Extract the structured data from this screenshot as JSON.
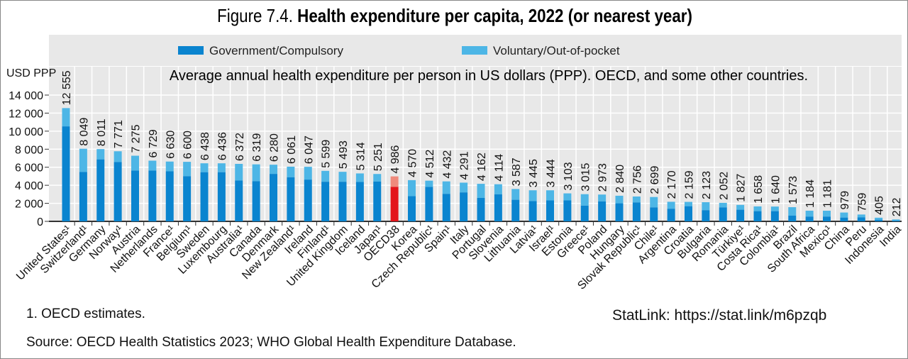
{
  "title_prefix": "Figure 7.4.",
  "title_main": "Health expenditure per capita, 2022 (or nearest year)",
  "footnote": "1. OECD estimates.",
  "statlink": "StatLink: https://stat.link/m6pzqb",
  "source": "Source: OECD Health Statistics 2023; WHO Global Health Expenditure Database.",
  "colors": {
    "government": "#0a84cf",
    "voluntary": "#4db6e6",
    "oecd_government": "#e3151b",
    "oecd_voluntary": "#ef8a7c",
    "plot_bg": "#e8e8e8"
  },
  "chart_data": {
    "type": "bar",
    "stacked": true,
    "subtitle": "Average annual health expenditure per person in US dollars (PPP). OECD, and some other countries.",
    "ylabel": "USD PPP",
    "ylim": [
      0,
      14000
    ],
    "yticks": [
      "0",
      "2 000",
      "4 000",
      "6 000",
      "8 000",
      "10 000",
      "12 000",
      "14 000"
    ],
    "grid": true,
    "legend_position": "top",
    "highlight": "OECD38",
    "categories": [
      "United States¹",
      "Switzerland¹",
      "Germany",
      "Norway¹",
      "Austria",
      "Netherlands",
      "France¹",
      "Belgium¹",
      "Sweden",
      "Luxembourg",
      "Australia¹",
      "Canada",
      "Denmark",
      "New Zealand¹",
      "Ireland",
      "Finland¹",
      "United Kingdom",
      "Iceland",
      "Japan¹",
      "OECD38",
      "Korea",
      "Czech Republic¹",
      "Spain¹",
      "Italy",
      "Portugal",
      "Slovenia",
      "Lithuania",
      "Latvia¹",
      "Israel¹",
      "Estonia",
      "Greece¹",
      "Poland",
      "Hungary",
      "Slovak Republic¹",
      "Chile¹",
      "Argentina",
      "Croatia",
      "Bulgaria",
      "Romania",
      "Türkiye¹",
      "Costa Rica¹",
      "Colombia¹",
      "Brazil",
      "South Africa",
      "Mexico¹",
      "China",
      "Peru",
      "Indonesia",
      "India"
    ],
    "totals": [
      12555,
      8049,
      8011,
      7771,
      7275,
      6729,
      6630,
      6600,
      6438,
      6436,
      6372,
      6319,
      6280,
      6061,
      6047,
      5599,
      5493,
      5314,
      5251,
      4986,
      4570,
      4512,
      4432,
      4291,
      4162,
      4114,
      3587,
      3445,
      3444,
      3103,
      3015,
      2973,
      2840,
      2756,
      2699,
      2170,
      2159,
      2123,
      2052,
      1827,
      1658,
      1640,
      1573,
      1184,
      1181,
      979,
      759,
      405,
      212
    ],
    "total_labels": [
      "12 555",
      "8 049",
      "8 011",
      "7 771",
      "7 275",
      "6 729",
      "6 630",
      "6 600",
      "6 438",
      "6 436",
      "6 372",
      "6 319",
      "6 280",
      "6 061",
      "6 047",
      "5 599",
      "5 493",
      "5 314",
      "5 251",
      "4 986",
      "4 570",
      "4 512",
      "4 432",
      "4 291",
      "4 162",
      "4 114",
      "3 587",
      "3 445",
      "3 444",
      "3 103",
      "3 015",
      "2 973",
      "2 840",
      "2 756",
      "2 699",
      "2 170",
      "2 159",
      "2 123",
      "2 052",
      "1 827",
      "1 658",
      "1 640",
      "1 573",
      "1 184",
      "1 181",
      "979",
      "759",
      "405",
      "212"
    ],
    "series": [
      {
        "name": "Government/Compulsory",
        "values": [
          10530,
          5470,
          6870,
          6580,
          5630,
          5630,
          5550,
          5000,
          5450,
          5450,
          4530,
          4450,
          5260,
          4890,
          4630,
          4390,
          4390,
          4370,
          4420,
          3820,
          2790,
          3820,
          3050,
          3210,
          2600,
          3000,
          2390,
          2240,
          2320,
          2320,
          1740,
          2210,
          2000,
          2100,
          1550,
          1400,
          1680,
          1240,
          1550,
          1290,
          1130,
          1130,
          630,
          530,
          530,
          420,
          450,
          180,
          80
        ]
      },
      {
        "name": "Voluntary/Out-of-pocket",
        "values": [
          2025,
          2579,
          1141,
          1191,
          1645,
          1099,
          1080,
          1600,
          988,
          986,
          1842,
          1869,
          1020,
          1171,
          1417,
          1209,
          1103,
          944,
          831,
          1166,
          1780,
          692,
          1382,
          1081,
          1562,
          1114,
          1197,
          1205,
          1124,
          783,
          1275,
          763,
          840,
          656,
          1149,
          770,
          479,
          883,
          502,
          537,
          528,
          510,
          943,
          654,
          651,
          559,
          309,
          225,
          132
        ]
      }
    ]
  }
}
